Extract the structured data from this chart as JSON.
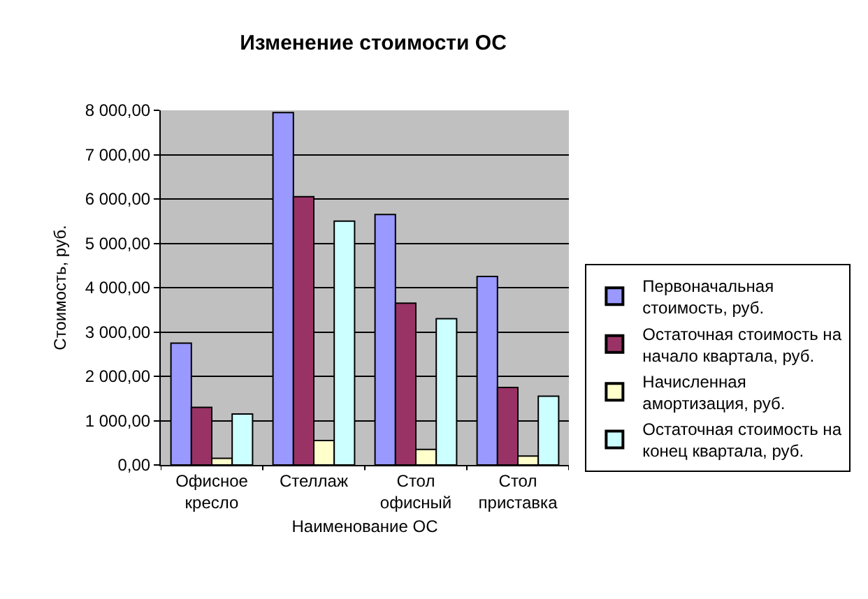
{
  "chart_data": {
    "type": "bar",
    "title": "Изменение стоимости ОС",
    "xlabel": "Наименование ОС",
    "ylabel": "Стоимость, руб.",
    "categories": [
      "Офисное кресло",
      "Стеллаж",
      "Стол офисный",
      "Стол приставка"
    ],
    "series": [
      {
        "name": "Первоначальная стоимость, руб.",
        "color": "#9999ff",
        "values": [
          2750,
          7950,
          5650,
          4250
        ]
      },
      {
        "name": "Остаточная стоимость на начало квартала, руб.",
        "color": "#993366",
        "values": [
          1300,
          6050,
          3650,
          1750
        ]
      },
      {
        "name": "Начисленная амортизация, руб.",
        "color": "#ffffcc",
        "values": [
          150,
          550,
          350,
          200
        ]
      },
      {
        "name": "Остаточная стоимость на конец квартала, руб.",
        "color": "#ccffff",
        "values": [
          1150,
          5500,
          3300,
          1550
        ]
      }
    ],
    "ylim": [
      0,
      8000
    ],
    "yticks": [
      {
        "value": 0,
        "label": "0,00"
      },
      {
        "value": 1000,
        "label": "1 000,00"
      },
      {
        "value": 2000,
        "label": "2 000,00"
      },
      {
        "value": 3000,
        "label": "3 000,00"
      },
      {
        "value": 4000,
        "label": "4 000,00"
      },
      {
        "value": 5000,
        "label": "5 000,00"
      },
      {
        "value": 6000,
        "label": "6 000,00"
      },
      {
        "value": 7000,
        "label": "7 000,00"
      },
      {
        "value": 8000,
        "label": "8 000,00"
      }
    ],
    "grid": "y",
    "legend": "right"
  }
}
